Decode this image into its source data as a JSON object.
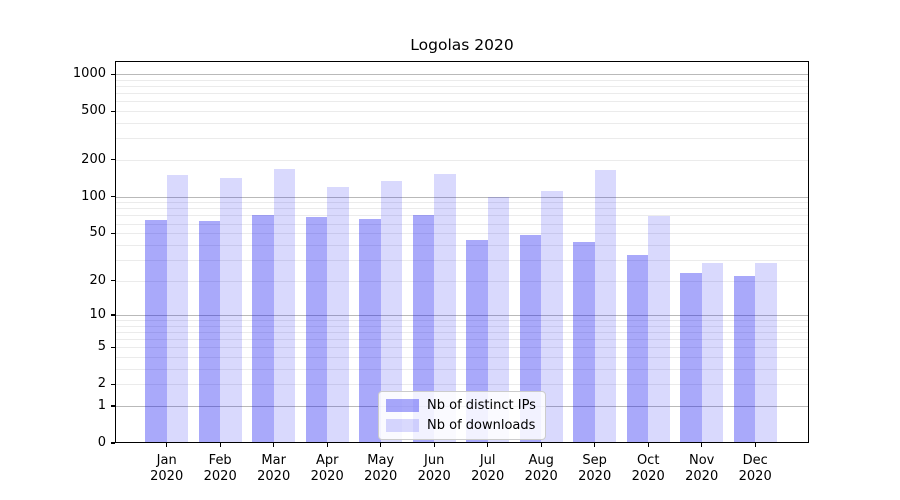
{
  "chart_data": {
    "type": "bar",
    "title": "Logolas 2020",
    "y_scale": "symlog",
    "categories": [
      "Jan 2020",
      "Feb 2020",
      "Mar 2020",
      "Apr 2020",
      "May 2020",
      "Jun 2020",
      "Jul 2020",
      "Aug 2020",
      "Sep 2020",
      "Oct 2020",
      "Nov 2020",
      "Dec 2020"
    ],
    "series": [
      {
        "name": "Nb of distinct IPs",
        "color": "rgba(10,10,240,0.35)",
        "legend_color": "#a9a9f3",
        "values": [
          64,
          63,
          71,
          68,
          66,
          71,
          44,
          48,
          42,
          33,
          23,
          22
        ]
      },
      {
        "name": "Nb of downloads",
        "color": "rgba(10,10,240,0.155)",
        "legend_color": "#dcdcf9",
        "values": [
          150,
          141,
          170,
          120,
          134,
          152,
          100,
          111,
          165,
          69,
          28,
          28
        ]
      }
    ],
    "y_ticks": [
      0,
      1,
      2,
      5,
      10,
      20,
      50,
      100,
      200,
      500,
      1000
    ],
    "ylim": [
      0,
      1280
    ],
    "xlabel": "",
    "ylabel": "",
    "grid": "on",
    "legend_position": "bottom-center",
    "colors": {
      "major_grid": "#b9b9b9",
      "minor_grid": "#ebebeb",
      "spine": "#000000",
      "background": "#ffffff"
    }
  }
}
